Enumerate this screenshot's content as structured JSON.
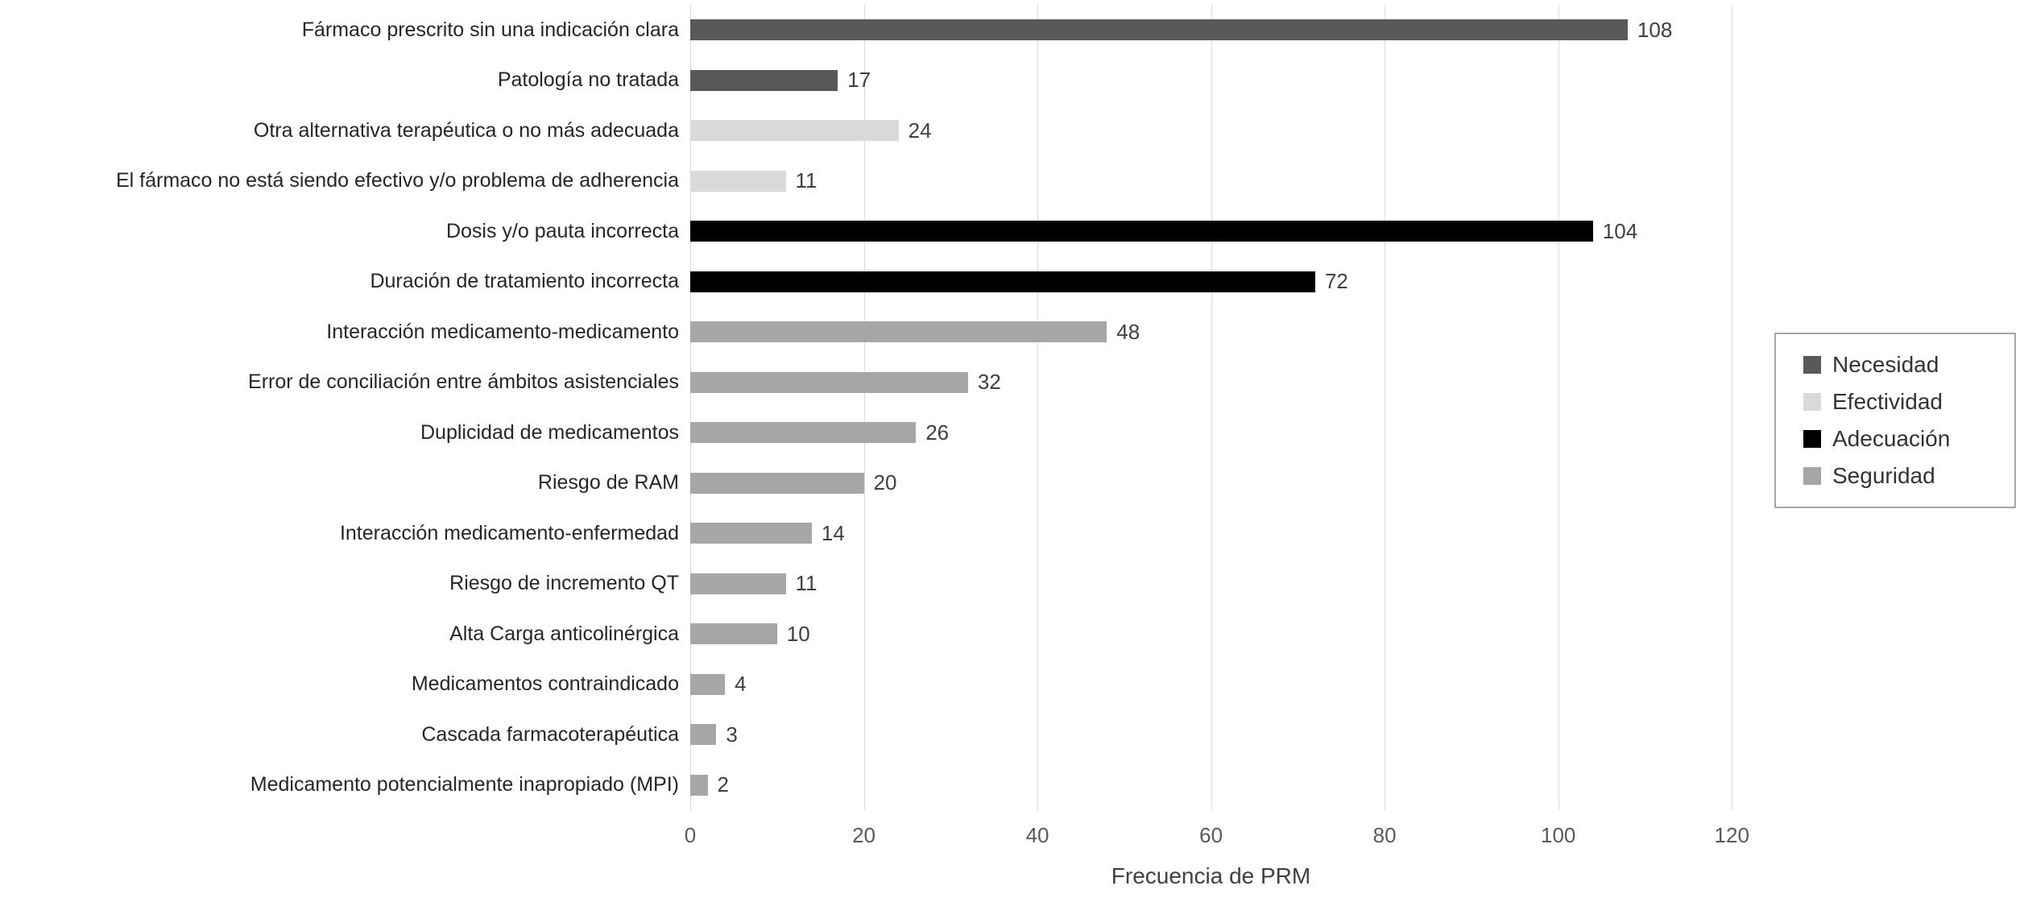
{
  "chart_data": {
    "type": "bar",
    "orientation": "horizontal",
    "title": "",
    "xlabel": "Frecuencia de PRM",
    "ylabel": "",
    "xlim": [
      0,
      130
    ],
    "x_ticks": [
      0,
      20,
      40,
      60,
      80,
      100,
      120
    ],
    "grid": true,
    "legend_position": "right",
    "legend": [
      {
        "label": "Necesidad",
        "color": "#595959"
      },
      {
        "label": "Efectividad",
        "color": "#d9d9d9"
      },
      {
        "label": "Adecuación",
        "color": "#000000"
      },
      {
        "label": "Seguridad",
        "color": "#a6a6a6"
      }
    ],
    "bars": [
      {
        "label": "Fármaco prescrito sin una indicación clara",
        "value": 108,
        "category": "Necesidad",
        "color": "#595959"
      },
      {
        "label": "Patología no tratada",
        "value": 17,
        "category": "Necesidad",
        "color": "#595959"
      },
      {
        "label": "Otra alternativa terapéutica o no más adecuada",
        "value": 24,
        "category": "Efectividad",
        "color": "#d9d9d9"
      },
      {
        "label": "El fármaco no está siendo efectivo y/o problema de adherencia",
        "value": 11,
        "category": "Efectividad",
        "color": "#d9d9d9"
      },
      {
        "label": "Dosis y/o pauta incorrecta",
        "value": 104,
        "category": "Adecuación",
        "color": "#000000"
      },
      {
        "label": "Duración de tratamiento incorrecta",
        "value": 72,
        "category": "Adecuación",
        "color": "#000000"
      },
      {
        "label": "Interacción medicamento-medicamento",
        "value": 48,
        "category": "Seguridad",
        "color": "#a6a6a6"
      },
      {
        "label": "Error de conciliación entre ámbitos asistenciales",
        "value": 32,
        "category": "Seguridad",
        "color": "#a6a6a6"
      },
      {
        "label": "Duplicidad de medicamentos",
        "value": 26,
        "category": "Seguridad",
        "color": "#a6a6a6"
      },
      {
        "label": "Riesgo de RAM",
        "value": 20,
        "category": "Seguridad",
        "color": "#a6a6a6"
      },
      {
        "label": "Interacción medicamento-enfermedad",
        "value": 14,
        "category": "Seguridad",
        "color": "#a6a6a6"
      },
      {
        "label": "Riesgo de incremento QT",
        "value": 11,
        "category": "Seguridad",
        "color": "#a6a6a6"
      },
      {
        "label": "Alta Carga anticolinérgica",
        "value": 10,
        "category": "Seguridad",
        "color": "#a6a6a6"
      },
      {
        "label": "Medicamentos contraindicado",
        "value": 4,
        "category": "Seguridad",
        "color": "#a6a6a6"
      },
      {
        "label": "Cascada farmacoterapéutica",
        "value": 3,
        "category": "Seguridad",
        "color": "#a6a6a6"
      },
      {
        "label": "Medicamento potencialmente inapropiado (MPI)",
        "value": 2,
        "category": "Seguridad",
        "color": "#a6a6a6"
      }
    ]
  }
}
